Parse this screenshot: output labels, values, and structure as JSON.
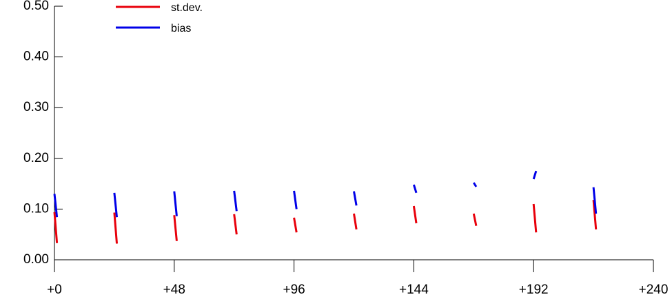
{
  "chart_data": {
    "type": "line",
    "x": [
      0,
      1,
      null,
      24,
      25,
      null,
      48,
      49,
      null,
      72,
      73,
      null,
      96,
      97,
      null,
      120,
      121,
      null,
      144,
      145,
      null,
      168,
      169,
      null,
      192,
      193,
      null,
      216,
      217
    ],
    "series": [
      {
        "name": "st.dev.",
        "color": "#e8000b",
        "values": [
          0.094,
          0.033,
          null,
          0.093,
          0.032,
          null,
          0.088,
          0.037,
          null,
          0.09,
          0.05,
          null,
          0.083,
          0.054,
          null,
          0.091,
          0.06,
          null,
          0.106,
          0.072,
          null,
          0.091,
          0.067,
          null,
          0.11,
          0.054,
          null,
          0.118,
          0.06
        ]
      },
      {
        "name": "bias",
        "color": "#0000e8",
        "values": [
          0.13,
          0.084,
          null,
          0.132,
          0.084,
          null,
          0.135,
          0.086,
          null,
          0.136,
          0.096,
          null,
          0.136,
          0.1,
          null,
          0.135,
          0.107,
          null,
          0.148,
          0.132,
          null,
          0.152,
          0.144,
          null,
          0.159,
          0.175,
          null,
          0.143,
          0.091
        ]
      }
    ],
    "xlim": [
      0,
      240
    ],
    "xticks": [
      {
        "value": 0,
        "label": "+0"
      },
      {
        "value": 48,
        "label": "+48"
      },
      {
        "value": 96,
        "label": "+96"
      },
      {
        "value": 144,
        "label": "+144"
      },
      {
        "value": 192,
        "label": "+192"
      },
      {
        "value": 240,
        "label": "+240"
      }
    ],
    "ylim": [
      0,
      0.5
    ],
    "yticks": [
      {
        "value": 0,
        "label": "0.00"
      },
      {
        "value": 0.1,
        "label": "0.10"
      },
      {
        "value": 0.2,
        "label": "0.20"
      },
      {
        "value": 0.3,
        "label": "0.30"
      },
      {
        "value": 0.4,
        "label": "0.40"
      },
      {
        "value": 0.5,
        "label": "0.50"
      }
    ],
    "legend": "top-left"
  }
}
